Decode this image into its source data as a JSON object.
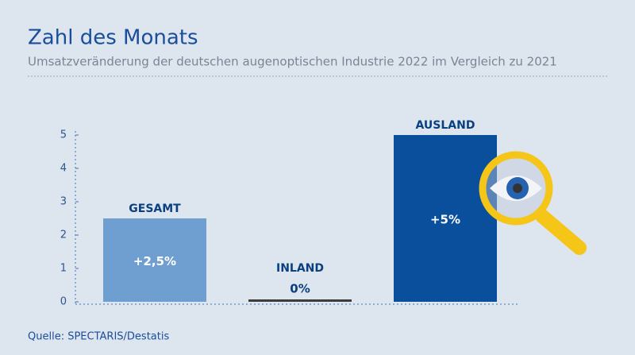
{
  "chart_data": {
    "type": "bar",
    "title": "Zahl des Monats",
    "subtitle": "Umsatzveränderung der deutschen augenoptischen Industrie 2022 im Vergleich zu 2021",
    "source": "Quelle: SPECTARIS/Destatis",
    "categories": [
      "GESAMT",
      "INLAND",
      "AUSLAND"
    ],
    "values": [
      2.5,
      0,
      5
    ],
    "value_labels": [
      "+2,5%",
      "0%",
      "+5%"
    ],
    "colors": [
      "#6f9fd0",
      "#3d3d3d",
      "#0a4f9c"
    ],
    "ylim": [
      0,
      5
    ],
    "yticks": [
      0,
      1,
      2,
      3,
      4,
      5
    ]
  }
}
